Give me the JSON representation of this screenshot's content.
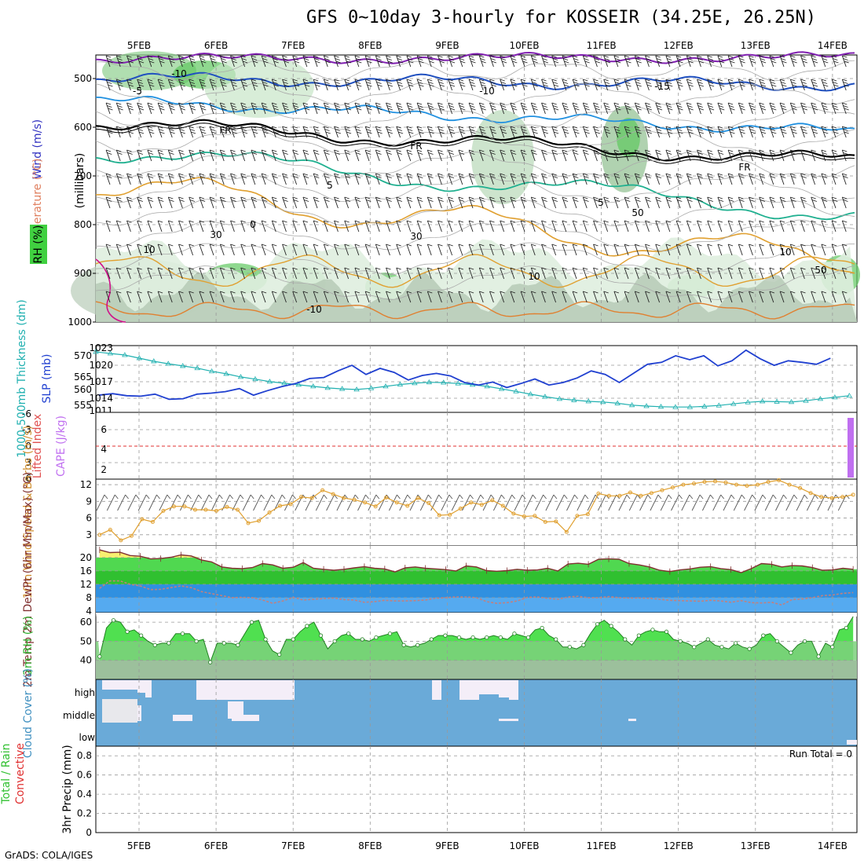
{
  "header": {
    "title": "GFS 0~10day 3-hourly for KOSSEIR (34.25E, 26.25N)",
    "footer": "GrADS: COLA/IGES"
  },
  "colors": {
    "temp_label": "#e05050",
    "wind_label": "#3030c0",
    "rh_green": "#40d040",
    "slp_line": "#2040d0",
    "thickness_line": "#20b0b0",
    "cape_bar": "#c070f0",
    "wind10_line": "#e0a030",
    "temp_fill": "#30c030",
    "dewpt_fill": "#3090e0",
    "rh2m_fill": "#60d060",
    "cloud_fill": "#6aaad8",
    "precip_label": "#30c030"
  },
  "chart_data": [
    {
      "panel": "upper-air",
      "type": "heatmap",
      "x_dates": [
        "5FEB",
        "6FEB",
        "7FEB",
        "8FEB",
        "9FEB",
        "10FEB",
        "11FEB",
        "12FEB",
        "13FEB",
        "14FEB"
      ],
      "ylabel": "(millibars)",
      "y_ticks": [
        "500",
        "600",
        "700",
        "800",
        "900",
        "1000"
      ],
      "legend_rh": "RH (%)",
      "legend_temp": "Temperature (°C)",
      "legend_wind": "Wind (m/s)",
      "contour_labels": [
        "-10",
        "-10",
        "-15",
        "FR",
        "FR",
        "FR",
        "5",
        "5",
        "0",
        "-10",
        "10",
        "10",
        "30",
        "30",
        "50",
        "50",
        "10",
        "-5"
      ]
    },
    {
      "panel": "slp-thickness",
      "type": "line",
      "ylabel_left": "1000-500mb Thickness (dm)",
      "ylabel_right": "SLP (mb)",
      "left_ticks": [
        "570",
        "565",
        "560",
        "555"
      ],
      "right_ticks": [
        "1023",
        "1020",
        "1017",
        "1014",
        "1011"
      ],
      "slp": [
        1013.6,
        1013.9,
        1013.5,
        1013.4,
        1013.8,
        1012.8,
        1012.9,
        1013.8,
        1014.0,
        1014.3,
        1014.9,
        1013.6,
        1014.5,
        1015.3,
        1015.9,
        1016.9,
        1017.1,
        1018.4,
        1019.5,
        1017.7,
        1018.9,
        1018.1,
        1016.6,
        1017.5,
        1017.9,
        1017.4,
        1016.1,
        1015.6,
        1016.2,
        1015.1,
        1015.9,
        1016.8,
        1015.6,
        1016.1,
        1017.0,
        1018.4,
        1017.7,
        1016.1,
        1017.9,
        1019.7,
        1020.1,
        1021.4,
        1020.6,
        1021.4,
        1019.4,
        1020.4,
        1022.5,
        1020.8,
        1019.5,
        1020.4,
        1020.1,
        1019.7,
        1020.9
      ],
      "thickness": [
        571.0,
        570.5,
        570.0,
        569.0,
        568.0,
        567.2,
        566.5,
        565.8,
        564.8,
        564.0,
        563.0,
        562.3,
        561.5,
        561.0,
        560.5,
        560.0,
        559.5,
        559.2,
        559.0,
        559.4,
        560.0,
        560.6,
        561.0,
        561.3,
        561.2,
        560.9,
        560.5,
        560.0,
        559.2,
        558.4,
        557.5,
        556.7,
        556.0,
        555.6,
        555.2,
        555.0,
        554.6,
        554.0,
        553.7,
        553.5,
        553.4,
        553.4,
        553.6,
        553.9,
        554.4,
        554.9,
        555.2,
        555.1,
        555.0,
        555.4,
        556.0,
        556.5,
        557.0
      ]
    },
    {
      "panel": "lifted-index-cape",
      "type": "bar",
      "ylabel_left": "Lifted Index",
      "ylabel_right": "CAPE (J/kg)",
      "left_ticks": [
        "-6",
        "-3",
        "0",
        "3",
        "6"
      ],
      "right_ticks": [
        "6",
        "4",
        "2"
      ],
      "lifted_index": 0,
      "cape_last": 7
    },
    {
      "panel": "10m-wind",
      "type": "line",
      "ylabel": "10m Wind Speed & Barbs (m/s)",
      "y_ticks": [
        "12",
        "9",
        "6",
        "3"
      ],
      "ylim": [
        1,
        13
      ],
      "speed": [
        3.0,
        3.9,
        2.0,
        2.8,
        5.8,
        5.3,
        7.3,
        8.1,
        8.1,
        7.5,
        7.5,
        7.3,
        8.0,
        7.5,
        5.1,
        5.5,
        7.0,
        8.2,
        8.5,
        9.8,
        9.6,
        11.0,
        10.3,
        9.6,
        9.3,
        8.8,
        8.1,
        9.7,
        8.8,
        8.2,
        9.6,
        8.7,
        6.5,
        6.6,
        7.7,
        8.8,
        8.4,
        9.2,
        8.2,
        6.8,
        6.3,
        6.4,
        5.3,
        5.4,
        3.5,
        6.4,
        6.7,
        10.4,
        10.0,
        10.0,
        10.6,
        10.0,
        10.5,
        11.0,
        11.5,
        12.0,
        12.2,
        12.5,
        12.6,
        12.4,
        12.0,
        11.8,
        12.0,
        12.5,
        12.8,
        12.0,
        11.4,
        10.5,
        9.8,
        9.6,
        9.8,
        10.2
      ]
    },
    {
      "panel": "2m-temp-dewpt",
      "type": "area",
      "ylabel": "2m Temp 2m DewPt (6hr Min/Max) (°C)",
      "y_ticks": [
        "20",
        "16",
        "12",
        "8",
        "4"
      ],
      "ylim": [
        3.5,
        23.5
      ],
      "temp": [
        22.3,
        21.5,
        21.6,
        20.6,
        20.4,
        19.6,
        19.7,
        20.1,
        20.8,
        20.5,
        19.3,
        18.7,
        17.2,
        16.8,
        16.7,
        17.0,
        18.2,
        17.8,
        16.8,
        17.1,
        18.5,
        16.8,
        16.5,
        16.2,
        16.5,
        16.9,
        17.3,
        16.8,
        16.6,
        15.7,
        16.9,
        17.2,
        16.8,
        16.6,
        16.4,
        16.0,
        17.5,
        17.2,
        16.1,
        15.9,
        16.1,
        16.5,
        16.2,
        16.3,
        16.8,
        16.0,
        18.1,
        18.3,
        18.0,
        19.5,
        19.6,
        19.5,
        18.2,
        17.8,
        17.2,
        16.2,
        15.8,
        16.3,
        16.6,
        17.1,
        17.3,
        16.7,
        16.4,
        15.5,
        16.7,
        18.2,
        18.0,
        17.2,
        17.6,
        17.5,
        17.0,
        16.2,
        16.3,
        16.8,
        16.5
      ],
      "dewpt": [
        10.8,
        13.0,
        13.0,
        12.0,
        11.5,
        10.4,
        10.5,
        11.0,
        11.5,
        11.0,
        9.8,
        9.2,
        8.6,
        8.0,
        8.1,
        8.0,
        7.3,
        6.3,
        7.0,
        8.1,
        7.3,
        7.5,
        7.7,
        7.9,
        7.4,
        7.3,
        6.6,
        6.8,
        7.2,
        7.0,
        7.0,
        7.1,
        7.3,
        7.8,
        8.0,
        8.2,
        8.2,
        8.0,
        6.8,
        6.3,
        6.5,
        7.0,
        8.1,
        8.2,
        7.8,
        7.5,
        8.2,
        8.4,
        8.0,
        8.0,
        8.3,
        8.0,
        7.9,
        7.9,
        7.8,
        7.5,
        7.2,
        7.1,
        7.0,
        6.9,
        7.2,
        7.0,
        6.6,
        7.1,
        6.5,
        6.4,
        6.6,
        5.8,
        7.4,
        7.6,
        8.0,
        8.6,
        8.8,
        9.3,
        9.5
      ]
    },
    {
      "panel": "2m-rh",
      "type": "area",
      "ylabel": "2m RH (%)",
      "y_ticks": [
        "60",
        "50",
        "40"
      ],
      "ylim": [
        30,
        65
      ],
      "rh": [
        42,
        57,
        61,
        60,
        55,
        56,
        53,
        50,
        48,
        49,
        49,
        54,
        54,
        54,
        50,
        51,
        39,
        49,
        49,
        49,
        48,
        54,
        60,
        61,
        51,
        45,
        43,
        51,
        51,
        55,
        58,
        60,
        53,
        46,
        50,
        53,
        54,
        51,
        51,
        50,
        52,
        53,
        54,
        55,
        48,
        47,
        48,
        49,
        51,
        53,
        53,
        53,
        52,
        51,
        52,
        51,
        52,
        53,
        52,
        51,
        54,
        53,
        52,
        56,
        57,
        53,
        51,
        47,
        47,
        46,
        48,
        54,
        59,
        61,
        58,
        55,
        51,
        48,
        53,
        55,
        56,
        55,
        55,
        51,
        50,
        49,
        47,
        49,
        51,
        48,
        47,
        46,
        49,
        47,
        46,
        48,
        53,
        54,
        50,
        47,
        44,
        48,
        50,
        50,
        42,
        49,
        47,
        56,
        57,
        63
      ]
    },
    {
      "panel": "cloud-cover",
      "type": "area",
      "ylabel": "Cloud Cover (%)",
      "levels": [
        "high",
        "middle",
        "low"
      ]
    },
    {
      "panel": "precip",
      "type": "bar",
      "ylabel": "3hr Precip (mm)",
      "legend": [
        "Total / Rain",
        "Convective"
      ],
      "y_ticks": [
        "0.8",
        "0.6",
        "0.4",
        "0.2",
        "0"
      ],
      "ylim": [
        0,
        0.9
      ],
      "run_total": "Run Total = 0"
    }
  ]
}
